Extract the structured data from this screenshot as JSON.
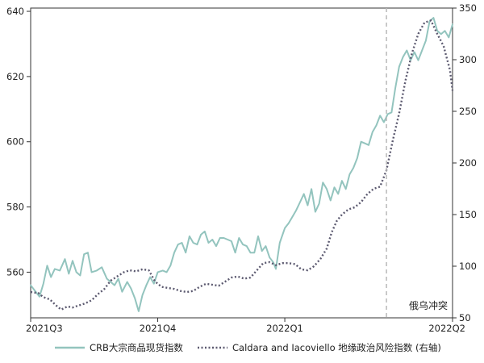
{
  "chart_data": {
    "type": "line",
    "title": "",
    "xlabel": "",
    "ylabel_left": "",
    "ylabel_right": "",
    "x_tick_labels": [
      "2021Q3",
      "2021Q4",
      "2022Q1",
      "2022Q2"
    ],
    "x_range": [
      "2021Q3",
      "2022Q2"
    ],
    "y_left": {
      "range": [
        546,
        641
      ],
      "ticks": [
        560,
        580,
        600,
        620,
        640
      ]
    },
    "y_right": {
      "range": [
        50,
        350
      ],
      "ticks": [
        50,
        100,
        150,
        200,
        250,
        300,
        350
      ]
    },
    "grid": false,
    "legend_position": "bottom",
    "annotation": {
      "label": "俄乌冲突",
      "x_quarter": 2.8,
      "style": "dashed vertical line"
    },
    "series": [
      {
        "name": "CRB大宗商品现货指数",
        "axis": "left",
        "color": "#93c4be",
        "style": "solid",
        "points": [
          [
            0.0,
            556.0
          ],
          [
            0.04,
            554.0
          ],
          [
            0.07,
            552.5
          ],
          [
            0.1,
            556.5
          ],
          [
            0.13,
            562.0
          ],
          [
            0.16,
            558.5
          ],
          [
            0.19,
            561.0
          ],
          [
            0.23,
            560.5
          ],
          [
            0.27,
            564.0
          ],
          [
            0.3,
            559.5
          ],
          [
            0.33,
            563.5
          ],
          [
            0.36,
            560.0
          ],
          [
            0.39,
            559.0
          ],
          [
            0.42,
            565.5
          ],
          [
            0.45,
            566.0
          ],
          [
            0.48,
            560.0
          ],
          [
            0.52,
            560.5
          ],
          [
            0.56,
            561.5
          ],
          [
            0.6,
            558.0
          ],
          [
            0.63,
            557.0
          ],
          [
            0.66,
            556.0
          ],
          [
            0.69,
            558.0
          ],
          [
            0.72,
            554.0
          ],
          [
            0.76,
            557.0
          ],
          [
            0.79,
            555.0
          ],
          [
            0.82,
            552.0
          ],
          [
            0.85,
            548.0
          ],
          [
            0.88,
            553.0
          ],
          [
            0.91,
            556.0
          ],
          [
            0.94,
            558.5
          ],
          [
            0.97,
            556.5
          ],
          [
            1.0,
            560.0
          ],
          [
            1.04,
            560.5
          ],
          [
            1.07,
            560.0
          ],
          [
            1.1,
            562.0
          ],
          [
            1.13,
            566.0
          ],
          [
            1.16,
            568.5
          ],
          [
            1.19,
            569.0
          ],
          [
            1.22,
            566.0
          ],
          [
            1.25,
            571.0
          ],
          [
            1.28,
            569.0
          ],
          [
            1.31,
            568.5
          ],
          [
            1.34,
            571.5
          ],
          [
            1.37,
            572.5
          ],
          [
            1.4,
            569.0
          ],
          [
            1.43,
            570.0
          ],
          [
            1.46,
            568.0
          ],
          [
            1.49,
            570.5
          ],
          [
            1.52,
            570.5
          ],
          [
            1.55,
            570.0
          ],
          [
            1.58,
            569.5
          ],
          [
            1.61,
            566.0
          ],
          [
            1.64,
            570.5
          ],
          [
            1.67,
            568.5
          ],
          [
            1.7,
            568.0
          ],
          [
            1.73,
            566.0
          ],
          [
            1.76,
            566.0
          ],
          [
            1.79,
            571.0
          ],
          [
            1.82,
            566.5
          ],
          [
            1.85,
            568.0
          ],
          [
            1.88,
            564.5
          ],
          [
            1.91,
            563.0
          ],
          [
            1.93,
            561.0
          ],
          [
            1.96,
            569.0
          ],
          [
            2.0,
            573.5
          ],
          [
            2.03,
            575.0
          ],
          [
            2.06,
            577.0
          ],
          [
            2.09,
            579.0
          ],
          [
            2.12,
            581.5
          ],
          [
            2.15,
            584.0
          ],
          [
            2.18,
            580.5
          ],
          [
            2.21,
            585.5
          ],
          [
            2.24,
            578.5
          ],
          [
            2.27,
            581.0
          ],
          [
            2.3,
            587.5
          ],
          [
            2.33,
            585.5
          ],
          [
            2.36,
            582.0
          ],
          [
            2.39,
            586.0
          ],
          [
            2.42,
            584.0
          ],
          [
            2.45,
            588.0
          ],
          [
            2.48,
            585.5
          ],
          [
            2.51,
            590.0
          ],
          [
            2.54,
            592.0
          ],
          [
            2.57,
            595.0
          ],
          [
            2.6,
            600.0
          ],
          [
            2.63,
            599.5
          ],
          [
            2.66,
            599.0
          ],
          [
            2.69,
            603.0
          ],
          [
            2.72,
            605.0
          ],
          [
            2.75,
            608.0
          ],
          [
            2.78,
            606.0
          ],
          [
            2.81,
            608.5
          ],
          [
            2.84,
            609.0
          ],
          [
            2.87,
            616.5
          ],
          [
            2.9,
            623.0
          ],
          [
            2.93,
            626.0
          ],
          [
            2.96,
            628.0
          ],
          [
            2.99,
            625.0
          ],
          [
            3.02,
            627.5
          ],
          [
            3.05,
            625.0
          ],
          [
            3.08,
            628.0
          ],
          [
            3.11,
            631.0
          ],
          [
            3.14,
            637.0
          ],
          [
            3.17,
            638.0
          ],
          [
            3.2,
            634.0
          ],
          [
            3.23,
            633.0
          ],
          [
            3.26,
            634.0
          ],
          [
            3.29,
            632.0
          ],
          [
            3.32,
            636.0
          ]
        ]
      },
      {
        "name": "Caldara and Iacoviello 地缘政治风险指数 (右轴)",
        "axis": "right",
        "color": "#5c5a70",
        "style": "dotted",
        "points": [
          [
            0.0,
            75
          ],
          [
            0.06,
            74
          ],
          [
            0.1,
            70
          ],
          [
            0.15,
            68
          ],
          [
            0.2,
            62
          ],
          [
            0.24,
            58
          ],
          [
            0.29,
            61
          ],
          [
            0.33,
            60
          ],
          [
            0.38,
            62
          ],
          [
            0.43,
            64
          ],
          [
            0.48,
            67
          ],
          [
            0.53,
            73
          ],
          [
            0.58,
            78
          ],
          [
            0.63,
            86
          ],
          [
            0.68,
            90
          ],
          [
            0.73,
            94
          ],
          [
            0.78,
            96
          ],
          [
            0.83,
            95
          ],
          [
            0.88,
            97
          ],
          [
            0.93,
            96
          ],
          [
            0.98,
            85
          ],
          [
            1.03,
            80
          ],
          [
            1.08,
            79
          ],
          [
            1.13,
            78
          ],
          [
            1.18,
            76
          ],
          [
            1.23,
            75
          ],
          [
            1.28,
            76
          ],
          [
            1.33,
            80
          ],
          [
            1.38,
            83
          ],
          [
            1.43,
            82
          ],
          [
            1.48,
            81
          ],
          [
            1.53,
            85
          ],
          [
            1.58,
            89
          ],
          [
            1.63,
            90
          ],
          [
            1.68,
            88
          ],
          [
            1.73,
            89
          ],
          [
            1.78,
            96
          ],
          [
            1.83,
            103
          ],
          [
            1.88,
            104
          ],
          [
            1.93,
            101
          ],
          [
            1.98,
            103
          ],
          [
            2.03,
            103
          ],
          [
            2.08,
            102
          ],
          [
            2.13,
            97
          ],
          [
            2.18,
            96
          ],
          [
            2.23,
            100
          ],
          [
            2.28,
            107
          ],
          [
            2.33,
            117
          ],
          [
            2.37,
            133
          ],
          [
            2.41,
            144
          ],
          [
            2.45,
            150
          ],
          [
            2.5,
            155
          ],
          [
            2.55,
            157
          ],
          [
            2.6,
            162
          ],
          [
            2.65,
            170
          ],
          [
            2.7,
            175
          ],
          [
            2.75,
            177
          ],
          [
            2.8,
            193
          ],
          [
            2.85,
            222
          ],
          [
            2.9,
            248
          ],
          [
            2.95,
            280
          ],
          [
            3.0,
            306
          ],
          [
            3.05,
            325
          ],
          [
            3.1,
            336
          ],
          [
            3.15,
            338
          ],
          [
            3.2,
            325
          ],
          [
            3.25,
            313
          ],
          [
            3.3,
            290
          ],
          [
            3.32,
            270
          ]
        ]
      }
    ]
  }
}
